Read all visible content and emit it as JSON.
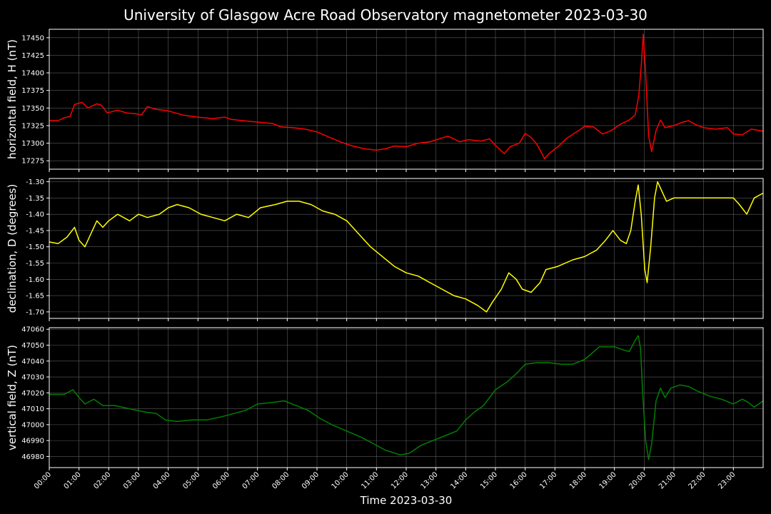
{
  "chart_data": {
    "type": "line",
    "title": "University of Glasgow Acre Road Observatory magnetometer 2023-03-30",
    "xlabel": "Time 2023-03-30",
    "x_unit": "hours since 00:00",
    "x_ticks": [
      "00:00",
      "01:00",
      "02:00",
      "03:00",
      "04:00",
      "05:00",
      "06:00",
      "07:00",
      "08:00",
      "09:00",
      "10:00",
      "11:00",
      "12:00",
      "13:00",
      "14:00",
      "15:00",
      "16:00",
      "17:00",
      "18:00",
      "19:00",
      "20:00",
      "21:00",
      "22:00",
      "23:00"
    ],
    "xlim": [
      0,
      24
    ],
    "grid": true,
    "panels": [
      {
        "ylabel": "horizontal field, H (nT)",
        "color": "#ff0000",
        "ylim": [
          17263,
          17462
        ],
        "y_ticks": [
          "17275",
          "17300",
          "17325",
          "17350",
          "17375",
          "17400",
          "17425",
          "17450"
        ],
        "points": [
          [
            0,
            17332
          ],
          [
            0.3,
            17332
          ],
          [
            0.5,
            17336
          ],
          [
            0.7,
            17338
          ],
          [
            0.85,
            17355
          ],
          [
            1.1,
            17358
          ],
          [
            1.3,
            17350
          ],
          [
            1.6,
            17356
          ],
          [
            1.75,
            17354
          ],
          [
            1.95,
            17343
          ],
          [
            2.3,
            17347
          ],
          [
            2.6,
            17343
          ],
          [
            2.9,
            17342
          ],
          [
            3.1,
            17340
          ],
          [
            3.3,
            17352
          ],
          [
            3.6,
            17348
          ],
          [
            4.0,
            17346
          ],
          [
            4.5,
            17340
          ],
          [
            5.0,
            17337
          ],
          [
            5.5,
            17335
          ],
          [
            5.9,
            17337
          ],
          [
            6.1,
            17334
          ],
          [
            6.5,
            17332
          ],
          [
            7.0,
            17330
          ],
          [
            7.5,
            17328
          ],
          [
            7.8,
            17323
          ],
          [
            8.2,
            17322
          ],
          [
            8.6,
            17320
          ],
          [
            9.0,
            17316
          ],
          [
            9.5,
            17307
          ],
          [
            9.9,
            17300
          ],
          [
            10.2,
            17296
          ],
          [
            10.6,
            17292
          ],
          [
            11.0,
            17290
          ],
          [
            11.3,
            17292
          ],
          [
            11.6,
            17296
          ],
          [
            12.0,
            17295
          ],
          [
            12.4,
            17300
          ],
          [
            12.8,
            17302
          ],
          [
            13.1,
            17306
          ],
          [
            13.4,
            17310
          ],
          [
            13.8,
            17302
          ],
          [
            14.1,
            17305
          ],
          [
            14.5,
            17303
          ],
          [
            14.8,
            17306
          ],
          [
            15.0,
            17297
          ],
          [
            15.3,
            17285
          ],
          [
            15.5,
            17295
          ],
          [
            15.8,
            17300
          ],
          [
            16.0,
            17314
          ],
          [
            16.2,
            17308
          ],
          [
            16.4,
            17298
          ],
          [
            16.65,
            17278
          ],
          [
            16.8,
            17285
          ],
          [
            17.1,
            17295
          ],
          [
            17.4,
            17307
          ],
          [
            17.8,
            17318
          ],
          [
            18.0,
            17324
          ],
          [
            18.3,
            17323
          ],
          [
            18.6,
            17313
          ],
          [
            18.9,
            17318
          ],
          [
            19.2,
            17327
          ],
          [
            19.5,
            17333
          ],
          [
            19.7,
            17340
          ],
          [
            19.82,
            17368
          ],
          [
            19.9,
            17410
          ],
          [
            19.97,
            17455
          ],
          [
            20.05,
            17400
          ],
          [
            20.15,
            17310
          ],
          [
            20.25,
            17288
          ],
          [
            20.4,
            17318
          ],
          [
            20.55,
            17333
          ],
          [
            20.7,
            17322
          ],
          [
            21.0,
            17325
          ],
          [
            21.3,
            17330
          ],
          [
            21.5,
            17332
          ],
          [
            21.7,
            17327
          ],
          [
            22.0,
            17322
          ],
          [
            22.4,
            17320
          ],
          [
            22.8,
            17322
          ],
          [
            23.0,
            17313
          ],
          [
            23.3,
            17312
          ],
          [
            23.6,
            17320
          ],
          [
            24.0,
            17317
          ]
        ]
      },
      {
        "ylabel": "declination, D (degrees)",
        "color": "#ffff00",
        "ylim": [
          -1.72,
          -1.29
        ],
        "y_ticks": [
          "-1.30",
          "-1.35",
          "-1.40",
          "-1.45",
          "-1.50",
          "-1.55",
          "-1.60",
          "-1.65",
          "-1.70"
        ],
        "points": [
          [
            0,
            -1.485
          ],
          [
            0.3,
            -1.49
          ],
          [
            0.6,
            -1.47
          ],
          [
            0.85,
            -1.44
          ],
          [
            1.0,
            -1.48
          ],
          [
            1.2,
            -1.5
          ],
          [
            1.4,
            -1.46
          ],
          [
            1.6,
            -1.42
          ],
          [
            1.8,
            -1.44
          ],
          [
            2.0,
            -1.42
          ],
          [
            2.3,
            -1.4
          ],
          [
            2.7,
            -1.42
          ],
          [
            3.0,
            -1.4
          ],
          [
            3.3,
            -1.41
          ],
          [
            3.7,
            -1.4
          ],
          [
            4.0,
            -1.38
          ],
          [
            4.3,
            -1.37
          ],
          [
            4.7,
            -1.38
          ],
          [
            5.1,
            -1.4
          ],
          [
            5.5,
            -1.41
          ],
          [
            5.9,
            -1.42
          ],
          [
            6.3,
            -1.4
          ],
          [
            6.7,
            -1.41
          ],
          [
            7.1,
            -1.38
          ],
          [
            7.6,
            -1.37
          ],
          [
            8.0,
            -1.36
          ],
          [
            8.4,
            -1.36
          ],
          [
            8.8,
            -1.37
          ],
          [
            9.2,
            -1.39
          ],
          [
            9.6,
            -1.4
          ],
          [
            10.0,
            -1.42
          ],
          [
            10.4,
            -1.46
          ],
          [
            10.8,
            -1.5
          ],
          [
            11.2,
            -1.53
          ],
          [
            11.6,
            -1.56
          ],
          [
            12.0,
            -1.58
          ],
          [
            12.4,
            -1.59
          ],
          [
            12.8,
            -1.61
          ],
          [
            13.2,
            -1.63
          ],
          [
            13.6,
            -1.65
          ],
          [
            14.0,
            -1.66
          ],
          [
            14.4,
            -1.68
          ],
          [
            14.7,
            -1.7
          ],
          [
            14.9,
            -1.67
          ],
          [
            15.2,
            -1.63
          ],
          [
            15.45,
            -1.58
          ],
          [
            15.7,
            -1.6
          ],
          [
            15.9,
            -1.63
          ],
          [
            16.2,
            -1.64
          ],
          [
            16.5,
            -1.61
          ],
          [
            16.7,
            -1.57
          ],
          [
            17.1,
            -1.56
          ],
          [
            17.6,
            -1.54
          ],
          [
            18.0,
            -1.53
          ],
          [
            18.4,
            -1.51
          ],
          [
            18.7,
            -1.48
          ],
          [
            18.95,
            -1.45
          ],
          [
            19.2,
            -1.48
          ],
          [
            19.4,
            -1.49
          ],
          [
            19.55,
            -1.45
          ],
          [
            19.7,
            -1.36
          ],
          [
            19.8,
            -1.31
          ],
          [
            19.9,
            -1.4
          ],
          [
            20.02,
            -1.57
          ],
          [
            20.1,
            -1.61
          ],
          [
            20.22,
            -1.5
          ],
          [
            20.35,
            -1.35
          ],
          [
            20.45,
            -1.3
          ],
          [
            20.6,
            -1.33
          ],
          [
            20.75,
            -1.36
          ],
          [
            21.0,
            -1.35
          ],
          [
            21.5,
            -1.35
          ],
          [
            22.0,
            -1.35
          ],
          [
            22.5,
            -1.35
          ],
          [
            23.0,
            -1.35
          ],
          [
            23.2,
            -1.37
          ],
          [
            23.45,
            -1.4
          ],
          [
            23.7,
            -1.35
          ],
          [
            24.0,
            -1.335
          ]
        ]
      },
      {
        "ylabel": "vertical field, Z (nT)",
        "color": "#008000",
        "ylim": [
          46973,
          47061
        ],
        "y_ticks": [
          "46980",
          "46990",
          "47000",
          "47010",
          "47020",
          "47030",
          "47040",
          "47050",
          "47060"
        ],
        "points": [
          [
            0,
            47019
          ],
          [
            0.5,
            47019
          ],
          [
            0.8,
            47022
          ],
          [
            1.0,
            47017
          ],
          [
            1.2,
            47013
          ],
          [
            1.5,
            47016
          ],
          [
            1.8,
            47012
          ],
          [
            2.2,
            47012
          ],
          [
            2.7,
            47010
          ],
          [
            3.2,
            47008
          ],
          [
            3.6,
            47007
          ],
          [
            3.9,
            47003
          ],
          [
            4.3,
            47002
          ],
          [
            4.8,
            47003
          ],
          [
            5.3,
            47003
          ],
          [
            5.8,
            47005
          ],
          [
            6.2,
            47007
          ],
          [
            6.6,
            47009
          ],
          [
            7.0,
            47013
          ],
          [
            7.5,
            47014
          ],
          [
            7.9,
            47015
          ],
          [
            8.3,
            47012
          ],
          [
            8.7,
            47009
          ],
          [
            9.1,
            47004
          ],
          [
            9.5,
            47000
          ],
          [
            10.0,
            46996
          ],
          [
            10.5,
            46992
          ],
          [
            10.9,
            46988
          ],
          [
            11.3,
            46984
          ],
          [
            11.8,
            46981
          ],
          [
            12.1,
            46982
          ],
          [
            12.5,
            46987
          ],
          [
            12.9,
            46990
          ],
          [
            13.3,
            46993
          ],
          [
            13.7,
            46996
          ],
          [
            14.0,
            47003
          ],
          [
            14.3,
            47008
          ],
          [
            14.6,
            47012
          ],
          [
            15.0,
            47022
          ],
          [
            15.4,
            47027
          ],
          [
            15.7,
            47032
          ],
          [
            16.0,
            47038
          ],
          [
            16.4,
            47039
          ],
          [
            16.8,
            47039
          ],
          [
            17.2,
            47038
          ],
          [
            17.6,
            47038
          ],
          [
            18.0,
            47041
          ],
          [
            18.5,
            47049
          ],
          [
            19.0,
            47049
          ],
          [
            19.3,
            47047
          ],
          [
            19.5,
            47046
          ],
          [
            19.7,
            47053
          ],
          [
            19.8,
            47056
          ],
          [
            19.88,
            47048
          ],
          [
            19.95,
            47020
          ],
          [
            20.05,
            46990
          ],
          [
            20.15,
            46978
          ],
          [
            20.25,
            46988
          ],
          [
            20.4,
            47015
          ],
          [
            20.55,
            47023
          ],
          [
            20.7,
            47017
          ],
          [
            20.9,
            47023
          ],
          [
            21.2,
            47025
          ],
          [
            21.5,
            47024
          ],
          [
            21.8,
            47021
          ],
          [
            22.2,
            47018
          ],
          [
            22.6,
            47016
          ],
          [
            23.0,
            47013
          ],
          [
            23.3,
            47016
          ],
          [
            23.5,
            47014
          ],
          [
            23.7,
            47011
          ],
          [
            24.0,
            47015
          ]
        ]
      }
    ]
  }
}
